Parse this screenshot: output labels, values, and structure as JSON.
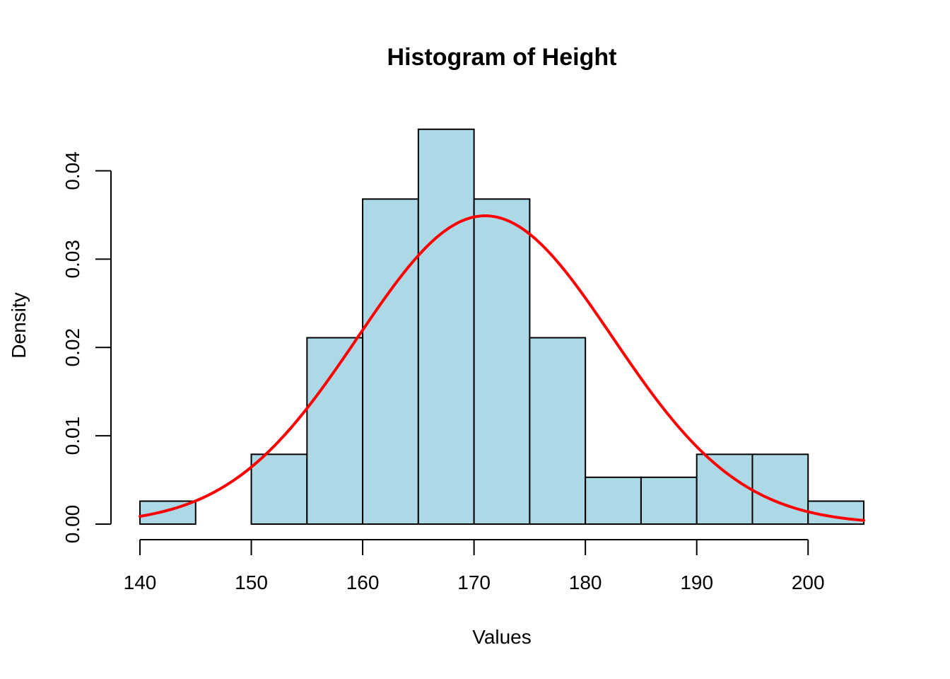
{
  "chart_data": {
    "type": "bar",
    "title": "Histogram of Height",
    "xlabel": "Values",
    "ylabel": "Density",
    "xlim": [
      140,
      205
    ],
    "ylim": [
      0,
      0.045
    ],
    "x_ticks": [
      140,
      150,
      160,
      170,
      180,
      190,
      200
    ],
    "x_tick_labels": [
      "140",
      "150",
      "160",
      "170",
      "180",
      "190",
      "200"
    ],
    "y_ticks": [
      0,
      0.01,
      0.02,
      0.03,
      0.04
    ],
    "y_tick_labels": [
      "0.00",
      "0.01",
      "0.02",
      "0.03",
      "0.04"
    ],
    "grid": false,
    "bins": [
      {
        "start": 140,
        "end": 145,
        "density": 0.0026
      },
      {
        "start": 145,
        "end": 150,
        "density": 0.0
      },
      {
        "start": 150,
        "end": 155,
        "density": 0.0079
      },
      {
        "start": 155,
        "end": 160,
        "density": 0.0211
      },
      {
        "start": 160,
        "end": 165,
        "density": 0.0368
      },
      {
        "start": 165,
        "end": 170,
        "density": 0.0447
      },
      {
        "start": 170,
        "end": 175,
        "density": 0.0368
      },
      {
        "start": 175,
        "end": 180,
        "density": 0.0211
      },
      {
        "start": 180,
        "end": 185,
        "density": 0.0053
      },
      {
        "start": 185,
        "end": 190,
        "density": 0.0053
      },
      {
        "start": 190,
        "end": 195,
        "density": 0.0079
      },
      {
        "start": 195,
        "end": 200,
        "density": 0.0079
      },
      {
        "start": 200,
        "end": 205,
        "density": 0.0026
      }
    ],
    "normal_curve": {
      "mean": 171,
      "sd": 11.43
    },
    "colors": {
      "bar_fill": "#ADD8E6",
      "curve": "#FF0000"
    }
  }
}
